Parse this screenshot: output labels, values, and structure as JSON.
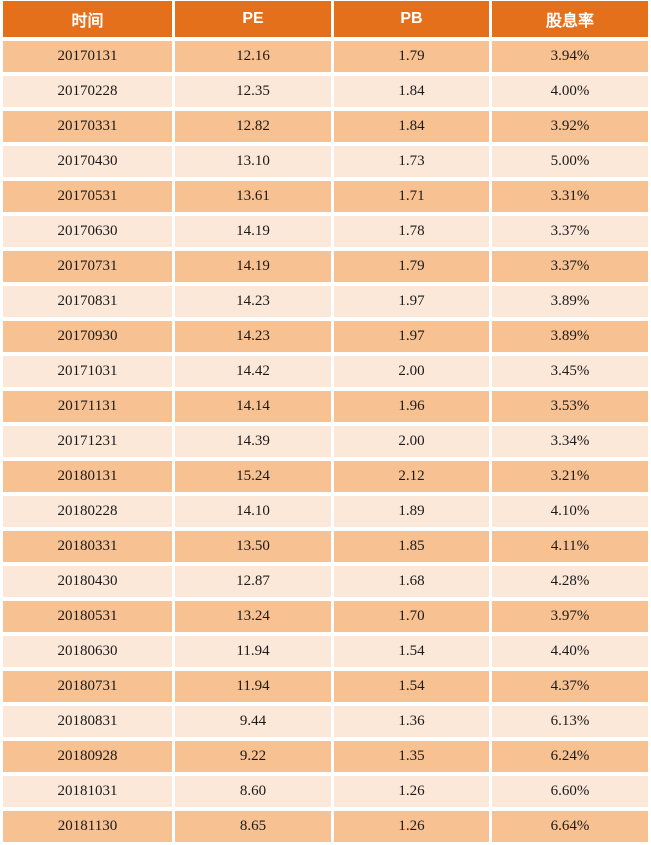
{
  "colors": {
    "background": "#FFFFFF",
    "header_bg": "#E4701B",
    "header_text": "#FFFFFF",
    "row_dark": "#F7C191",
    "row_light": "#FCE8D9",
    "cell_text": "#1A1A1A"
  },
  "chart_data": {
    "type": "table",
    "columns": [
      "时间",
      "PE",
      "PB",
      "股息率"
    ],
    "rows": [
      [
        "20170131",
        "12.16",
        "1.79",
        "3.94%"
      ],
      [
        "20170228",
        "12.35",
        "1.84",
        "4.00%"
      ],
      [
        "20170331",
        "12.82",
        "1.84",
        "3.92%"
      ],
      [
        "20170430",
        "13.10",
        "1.73",
        "5.00%"
      ],
      [
        "20170531",
        "13.61",
        "1.71",
        "3.31%"
      ],
      [
        "20170630",
        "14.19",
        "1.78",
        "3.37%"
      ],
      [
        "20170731",
        "14.19",
        "1.79",
        "3.37%"
      ],
      [
        "20170831",
        "14.23",
        "1.97",
        "3.89%"
      ],
      [
        "20170930",
        "14.23",
        "1.97",
        "3.89%"
      ],
      [
        "20171031",
        "14.42",
        "2.00",
        "3.45%"
      ],
      [
        "20171131",
        "14.14",
        "1.96",
        "3.53%"
      ],
      [
        "20171231",
        "14.39",
        "2.00",
        "3.34%"
      ],
      [
        "20180131",
        "15.24",
        "2.12",
        "3.21%"
      ],
      [
        "20180228",
        "14.10",
        "1.89",
        "4.10%"
      ],
      [
        "20180331",
        "13.50",
        "1.85",
        "4.11%"
      ],
      [
        "20180430",
        "12.87",
        "1.68",
        "4.28%"
      ],
      [
        "20180531",
        "13.24",
        "1.70",
        "3.97%"
      ],
      [
        "20180630",
        "11.94",
        "1.54",
        "4.40%"
      ],
      [
        "20180731",
        "11.94",
        "1.54",
        "4.37%"
      ],
      [
        "20180831",
        "9.44",
        "1.36",
        "6.13%"
      ],
      [
        "20180928",
        "9.22",
        "1.35",
        "6.24%"
      ],
      [
        "20181031",
        "8.60",
        "1.26",
        "6.60%"
      ],
      [
        "20181130",
        "8.65",
        "1.26",
        "6.64%"
      ]
    ]
  }
}
